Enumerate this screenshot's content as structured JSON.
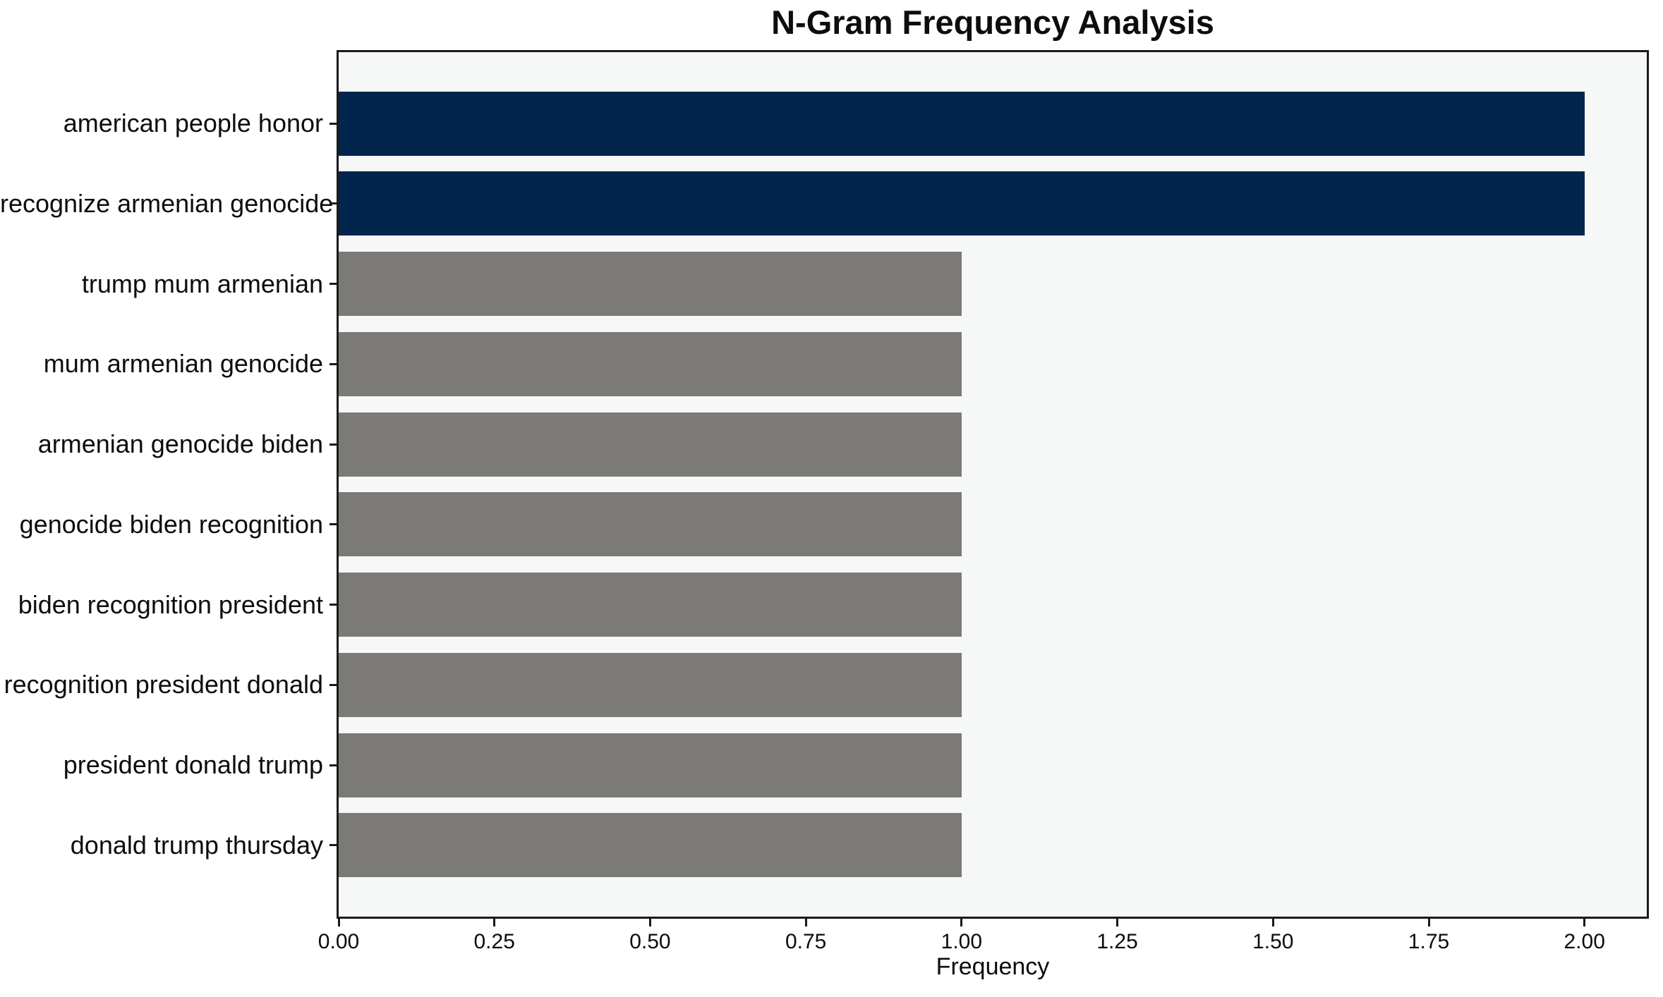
{
  "chart_data": {
    "type": "bar",
    "orientation": "horizontal",
    "title": "N-Gram Frequency Analysis",
    "xlabel": "Frequency",
    "ylabel": "",
    "categories": [
      "american people honor",
      "recognize armenian genocide",
      "trump mum armenian",
      "mum armenian genocide",
      "armenian genocide biden",
      "genocide biden recognition",
      "biden recognition president",
      "recognition president donald",
      "president donald trump",
      "donald trump thursday"
    ],
    "values": [
      2,
      2,
      1,
      1,
      1,
      1,
      1,
      1,
      1,
      1
    ],
    "bar_colors": [
      "#02254E",
      "#02254E",
      "#7B7A77",
      "#7B7A77",
      "#7B7A77",
      "#7B7A77",
      "#7B7A77",
      "#7B7A77",
      "#7B7A77",
      "#7B7A77"
    ],
    "highlight_color": "#02254E",
    "default_color": "#7B7A77",
    "xlim": [
      0,
      2.1
    ],
    "xticks": [
      {
        "value": 0.0,
        "label": "0.00"
      },
      {
        "value": 0.25,
        "label": "0.25"
      },
      {
        "value": 0.5,
        "label": "0.50"
      },
      {
        "value": 0.75,
        "label": "0.75"
      },
      {
        "value": 1.0,
        "label": "1.00"
      },
      {
        "value": 1.25,
        "label": "1.25"
      },
      {
        "value": 1.5,
        "label": "1.50"
      },
      {
        "value": 1.75,
        "label": "1.75"
      },
      {
        "value": 2.0,
        "label": "2.00"
      }
    ],
    "grid": false,
    "legend_position": "none",
    "plot_background": "#F6F7F7",
    "figure_background": "#FFFFFF"
  }
}
